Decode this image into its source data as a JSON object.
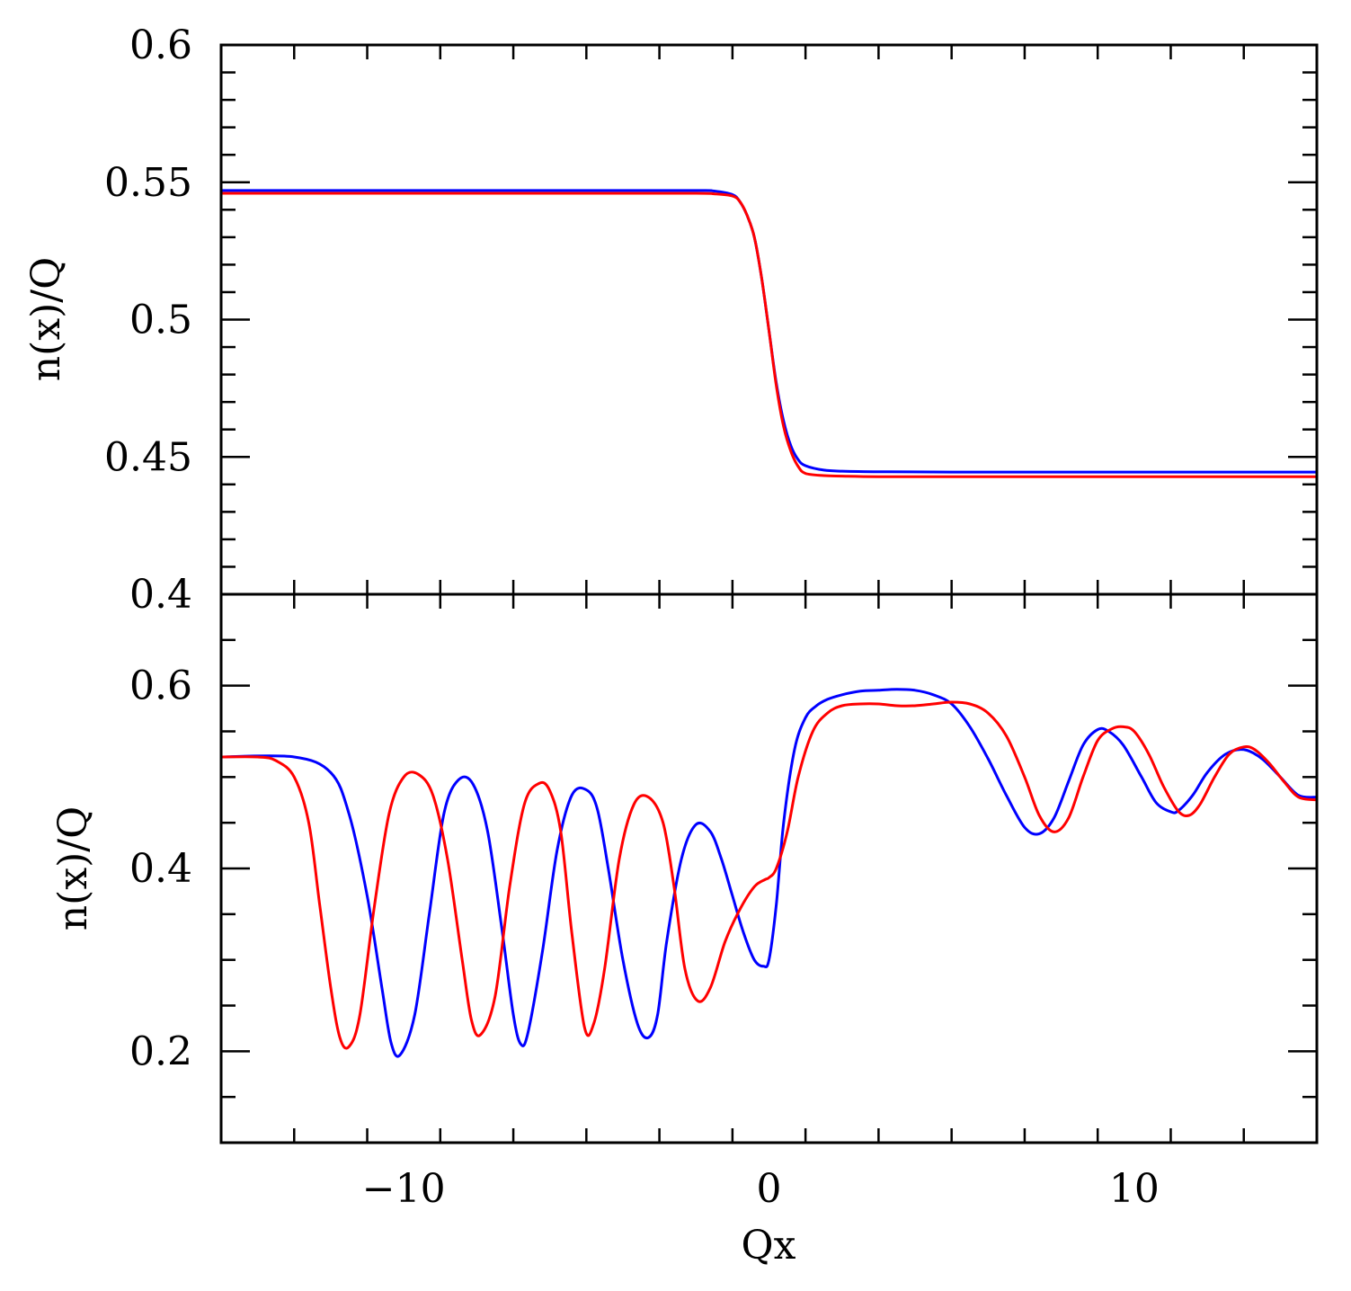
{
  "chart_data": [
    {
      "type": "line",
      "panel": "top",
      "xlim": [
        -15,
        15
      ],
      "ylim": [
        0.4,
        0.6
      ],
      "ylabel": "n(x)/Q",
      "xlabel": "",
      "yticks_major": [
        0.4,
        0.45,
        0.5,
        0.55,
        0.6
      ],
      "ytick_labels": [
        "0.4",
        "0.45",
        "0.5",
        "0.55",
        "0.6"
      ],
      "yticks_minor_step": 0.01,
      "xticks_major": [
        -10,
        0,
        10
      ],
      "xticks_minor_step": 2,
      "grid": false,
      "series": [
        {
          "color": "#0000ff",
          "x": [
            -15,
            -10,
            -5,
            -2,
            -1.5,
            -1,
            -0.8,
            -0.6,
            -0.4,
            -0.2,
            0,
            0.2,
            0.4,
            0.6,
            0.8,
            1,
            1.5,
            2,
            3,
            5,
            10,
            15
          ],
          "y": [
            0.547,
            0.547,
            0.547,
            0.547,
            0.5468,
            0.5455,
            0.543,
            0.538,
            0.53,
            0.515,
            0.496,
            0.477,
            0.463,
            0.454,
            0.449,
            0.4468,
            0.4452,
            0.4448,
            0.4446,
            0.4445,
            0.4445,
            0.4445
          ]
        },
        {
          "color": "#ff0000",
          "x": [
            -15,
            -10,
            -5,
            -2,
            -1.5,
            -1,
            -0.8,
            -0.6,
            -0.4,
            -0.2,
            0,
            0.2,
            0.4,
            0.6,
            0.8,
            1,
            1.5,
            2,
            3,
            5,
            10,
            15
          ],
          "y": [
            0.546,
            0.546,
            0.546,
            0.546,
            0.5458,
            0.545,
            0.543,
            0.538,
            0.53,
            0.515,
            0.496,
            0.476,
            0.461,
            0.452,
            0.4465,
            0.444,
            0.4432,
            0.443,
            0.4428,
            0.4428,
            0.4428,
            0.4428
          ]
        }
      ]
    },
    {
      "type": "line",
      "panel": "bottom",
      "xlim": [
        -15,
        15
      ],
      "ylim": [
        0.1,
        0.7
      ],
      "ylabel": "n(x)/Q",
      "xlabel": "Qx",
      "yticks_major": [
        0.2,
        0.4,
        0.6
      ],
      "ytick_labels": [
        "0.2",
        "0.4",
        "0.6"
      ],
      "yticks_minor_step": 0.05,
      "xticks_major": [
        -10,
        0,
        10
      ],
      "xtick_labels": [
        "−10",
        "0",
        "10"
      ],
      "xticks_minor_step": 2,
      "grid": false,
      "series": [
        {
          "color": "#0000ff",
          "x": [
            -15,
            -13,
            -12,
            -11.5,
            -11,
            -10.6,
            -10.35,
            -10.1,
            -9.7,
            -9.3,
            -8.9,
            -8.5,
            -8.1,
            -7.7,
            -7.3,
            -7.0,
            -6.8,
            -6.6,
            -6.2,
            -5.8,
            -5.4,
            -5.0,
            -4.7,
            -4.4,
            -4.0,
            -3.6,
            -3.3,
            -3.05,
            -2.8,
            -2.4,
            -2.0,
            -1.6,
            -1.3,
            -1.0,
            -0.7,
            -0.4,
            -0.15,
            0,
            0.2,
            0.4,
            0.7,
            1.0,
            1.3,
            1.6,
            2.0,
            2.5,
            3.0,
            3.5,
            4.0,
            4.5,
            5.0,
            5.5,
            6.0,
            6.5,
            7.0,
            7.4,
            7.8,
            8.2,
            8.6,
            9.0,
            9.3,
            9.7,
            10.2,
            10.6,
            11.0,
            11.2,
            11.6,
            12.0,
            12.5,
            13.0,
            13.5,
            14.0,
            14.5,
            15
          ],
          "y": [
            0.522,
            0.522,
            0.505,
            0.46,
            0.37,
            0.27,
            0.21,
            0.196,
            0.24,
            0.35,
            0.46,
            0.497,
            0.492,
            0.44,
            0.33,
            0.24,
            0.208,
            0.22,
            0.31,
            0.42,
            0.48,
            0.486,
            0.465,
            0.4,
            0.3,
            0.23,
            0.215,
            0.24,
            0.32,
            0.41,
            0.448,
            0.44,
            0.41,
            0.37,
            0.33,
            0.3,
            0.293,
            0.3,
            0.36,
            0.45,
            0.53,
            0.565,
            0.578,
            0.585,
            0.59,
            0.594,
            0.595,
            0.596,
            0.595,
            0.59,
            0.58,
            0.555,
            0.52,
            0.48,
            0.445,
            0.438,
            0.455,
            0.495,
            0.535,
            0.552,
            0.55,
            0.535,
            0.5,
            0.472,
            0.462,
            0.463,
            0.48,
            0.505,
            0.525,
            0.53,
            0.52,
            0.5,
            0.48,
            0.478
          ]
        },
        {
          "color": "#ff0000",
          "x": [
            -15,
            -14,
            -13.5,
            -13,
            -12.6,
            -12.3,
            -12.0,
            -11.75,
            -11.5,
            -11.2,
            -10.8,
            -10.4,
            -10.0,
            -9.6,
            -9.2,
            -8.8,
            -8.4,
            -8.15,
            -7.9,
            -7.5,
            -7.1,
            -6.7,
            -6.3,
            -6.0,
            -5.7,
            -5.4,
            -5.05,
            -4.8,
            -4.5,
            -4.1,
            -3.7,
            -3.3,
            -2.9,
            -2.6,
            -2.3,
            -1.95,
            -1.6,
            -1.2,
            -0.8,
            -0.4,
            -0.1,
            0,
            0.2,
            0.5,
            0.8,
            1.2,
            1.6,
            2.0,
            2.5,
            3.0,
            3.5,
            4.0,
            4.5,
            5.0,
            5.5,
            6.0,
            6.5,
            7.0,
            7.4,
            7.8,
            8.2,
            8.6,
            9.0,
            9.4,
            9.7,
            10.0,
            10.4,
            10.8,
            11.2,
            11.5,
            11.8,
            12.2,
            12.6,
            13.0,
            13.3,
            13.7,
            14.1,
            14.5,
            15
          ],
          "y": [
            0.522,
            0.522,
            0.518,
            0.5,
            0.45,
            0.36,
            0.27,
            0.215,
            0.205,
            0.24,
            0.36,
            0.46,
            0.5,
            0.503,
            0.48,
            0.41,
            0.3,
            0.235,
            0.218,
            0.26,
            0.38,
            0.47,
            0.493,
            0.485,
            0.44,
            0.33,
            0.226,
            0.23,
            0.29,
            0.41,
            0.47,
            0.478,
            0.45,
            0.38,
            0.29,
            0.255,
            0.27,
            0.32,
            0.355,
            0.38,
            0.388,
            0.39,
            0.4,
            0.44,
            0.5,
            0.55,
            0.57,
            0.578,
            0.58,
            0.58,
            0.578,
            0.578,
            0.58,
            0.582,
            0.58,
            0.57,
            0.545,
            0.5,
            0.458,
            0.44,
            0.455,
            0.5,
            0.54,
            0.553,
            0.555,
            0.55,
            0.525,
            0.49,
            0.463,
            0.458,
            0.47,
            0.5,
            0.525,
            0.533,
            0.53,
            0.515,
            0.495,
            0.478,
            0.475
          ]
        }
      ]
    }
  ]
}
